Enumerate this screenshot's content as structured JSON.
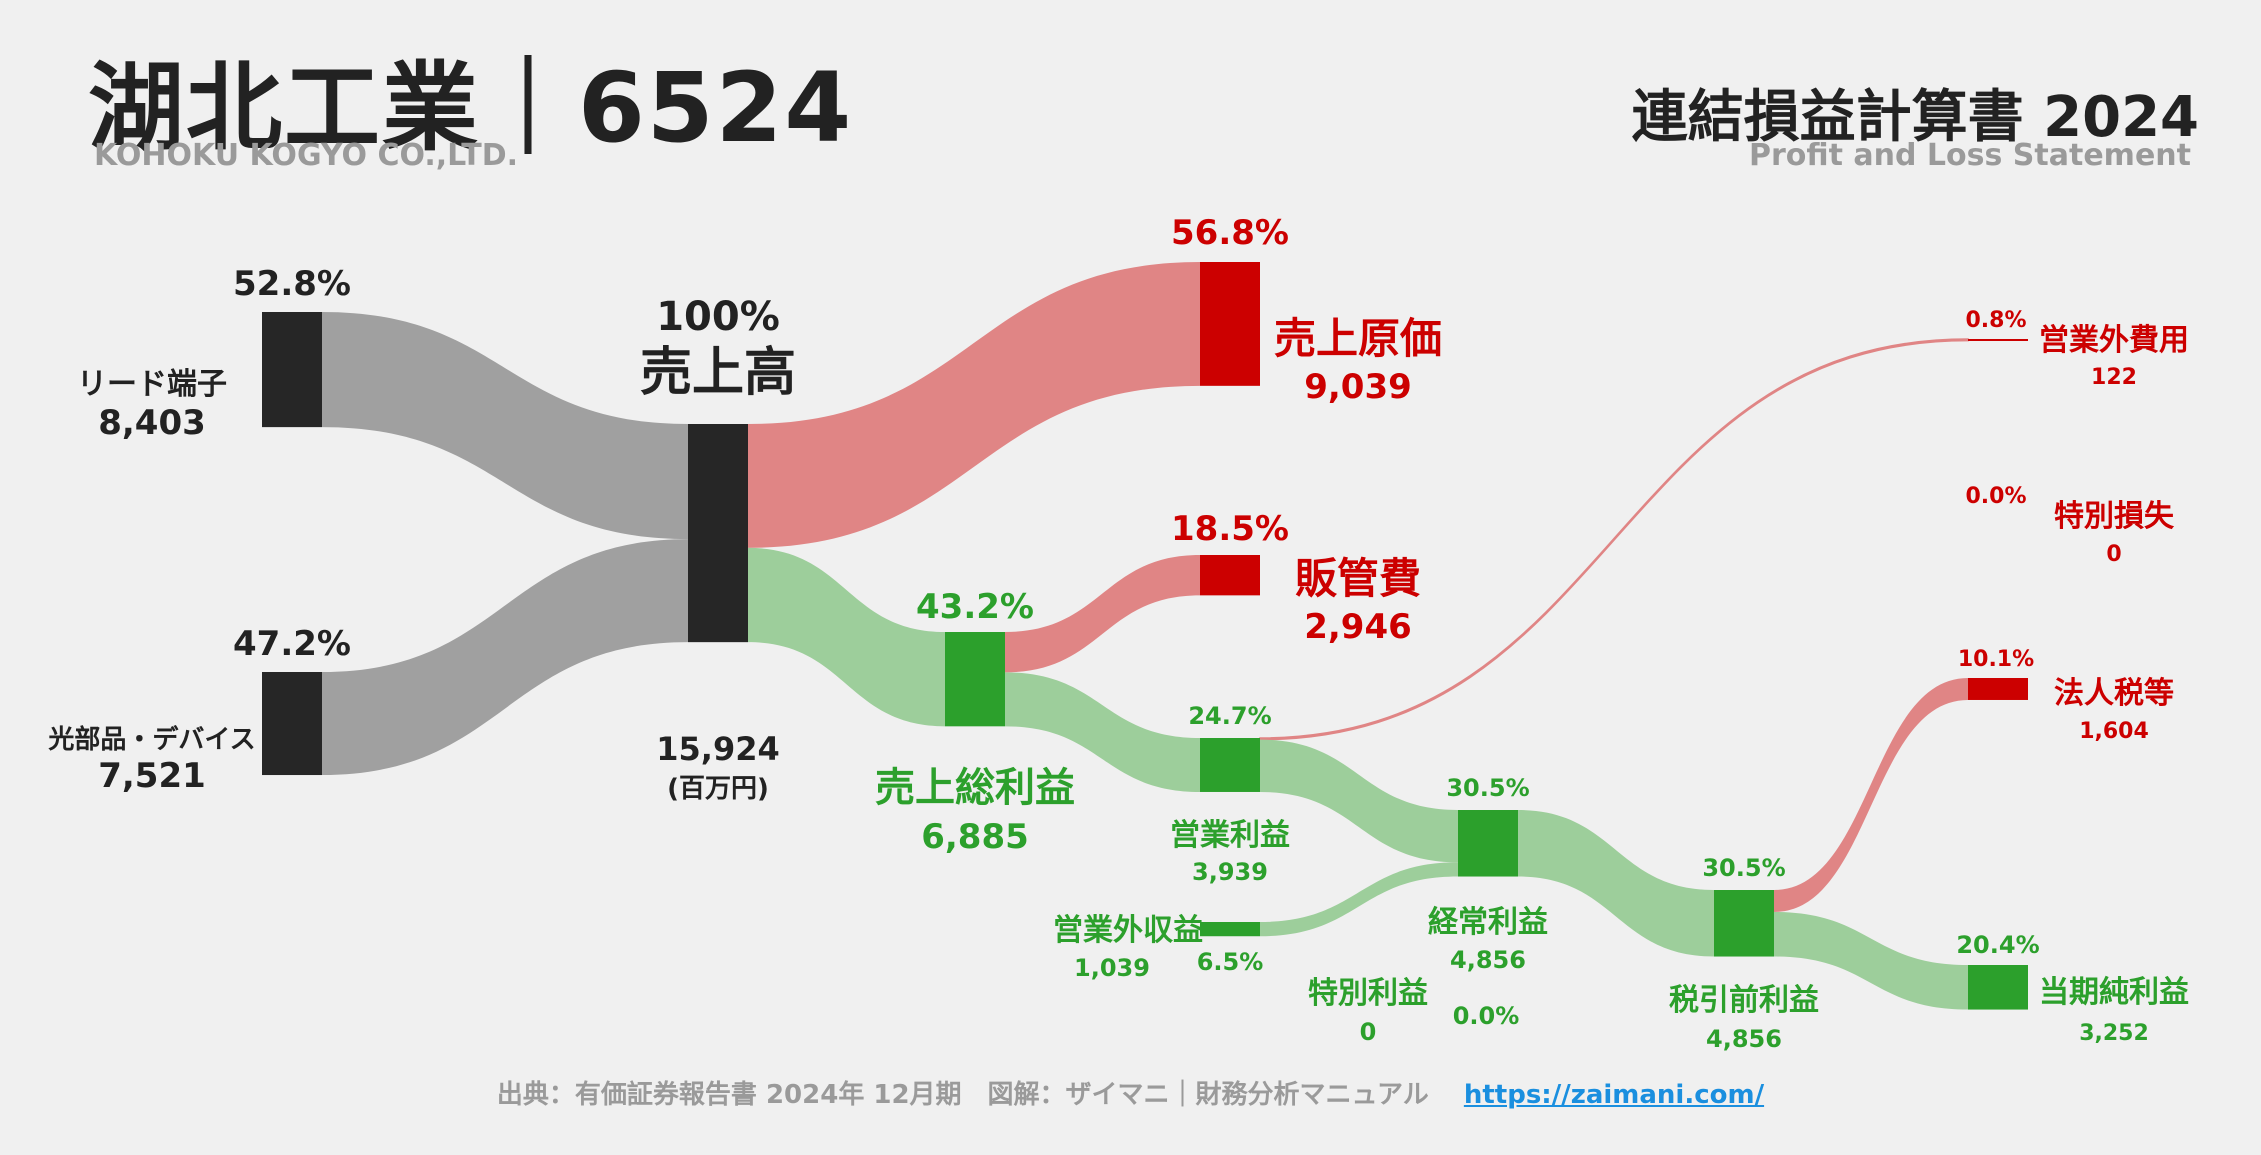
{
  "header": {
    "company": "湖北工業｜6524",
    "company_en": "KOHOKU KOGYO CO.,LTD.",
    "statement": "連結損益計算書 2024",
    "statement_en": "Profit and Loss Statement"
  },
  "footer": {
    "source": "出典：有価証券報告書 2024年 12月期　図解：ザイマニ｜財務分析マニュアル",
    "link": "https://zaimani.com/"
  },
  "colors": {
    "background": "#f0f0f0",
    "revenue_node": "#262626",
    "revenue_flow": "#a0a0a0",
    "cost_node": "#cc0000",
    "cost_flow": "#e08585",
    "profit_node": "#2ca02c",
    "profit_flow": "#9dce9b",
    "link": "#1a8fdf"
  },
  "chart_data": {
    "type": "sankey",
    "unit": "(百万円)",
    "nodes": [
      {
        "id": "lead",
        "label": "リード端子",
        "value_label": "8,403",
        "value": 8403,
        "pct": "52.8%",
        "kind": "segment"
      },
      {
        "id": "optical",
        "label": "光部品・デバイス",
        "value_label": "7,521",
        "value": 7521,
        "pct": "47.2%",
        "kind": "segment"
      },
      {
        "id": "sales",
        "label": "売上高",
        "value_label": "15,924",
        "value": 15924,
        "pct": "100%",
        "kind": "revenue"
      },
      {
        "id": "cogs",
        "label": "売上原価",
        "value_label": "9,039",
        "value": 9039,
        "pct": "56.8%",
        "kind": "cost"
      },
      {
        "id": "gross",
        "label": "売上総利益",
        "value_label": "6,885",
        "value": 6885,
        "pct": "43.2%",
        "kind": "profit"
      },
      {
        "id": "sga",
        "label": "販管費",
        "value_label": "2,946",
        "value": 2946,
        "pct": "18.5%",
        "kind": "cost"
      },
      {
        "id": "op",
        "label": "営業利益",
        "value_label": "3,939",
        "value": 3939,
        "pct": "24.7%",
        "kind": "profit"
      },
      {
        "id": "nonop_inc",
        "label": "営業外収益",
        "value_label": "1,039",
        "value": 1039,
        "pct": "6.5%",
        "kind": "profit"
      },
      {
        "id": "nonop_exp",
        "label": "営業外費用",
        "value_label": "122",
        "value": 122,
        "pct": "0.8%",
        "kind": "cost"
      },
      {
        "id": "ordinary",
        "label": "経常利益",
        "value_label": "4,856",
        "value": 4856,
        "pct": "30.5%",
        "kind": "profit"
      },
      {
        "id": "extra_inc",
        "label": "特別利益",
        "value_label": "0",
        "value": 0,
        "pct": "0.0%",
        "kind": "profit"
      },
      {
        "id": "extra_loss",
        "label": "特別損失",
        "value_label": "0",
        "value": 0,
        "pct": "0.0%",
        "kind": "cost"
      },
      {
        "id": "pretax",
        "label": "税引前利益",
        "value_label": "4,856",
        "value": 4856,
        "pct": "30.5%",
        "kind": "profit"
      },
      {
        "id": "tax",
        "label": "法人税等",
        "value_label": "1,604",
        "value": 1604,
        "pct": "10.1%",
        "kind": "cost"
      },
      {
        "id": "net",
        "label": "当期純利益",
        "value_label": "3,252",
        "value": 3252,
        "pct": "20.4%",
        "kind": "profit"
      }
    ],
    "flows": [
      {
        "from": "lead",
        "to": "sales",
        "value": 8403
      },
      {
        "from": "optical",
        "to": "sales",
        "value": 7521
      },
      {
        "from": "sales",
        "to": "cogs",
        "value": 9039
      },
      {
        "from": "sales",
        "to": "gross",
        "value": 6885
      },
      {
        "from": "gross",
        "to": "sga",
        "value": 2946
      },
      {
        "from": "gross",
        "to": "op",
        "value": 3939
      },
      {
        "from": "op",
        "to": "nonop_exp",
        "value": 122
      },
      {
        "from": "op",
        "to": "ordinary",
        "value": 3817
      },
      {
        "from": "nonop_inc",
        "to": "ordinary",
        "value": 1039
      },
      {
        "from": "ordinary",
        "to": "pretax",
        "value": 4856
      },
      {
        "from": "pretax",
        "to": "tax",
        "value": 1604
      },
      {
        "from": "pretax",
        "to": "net",
        "value": 3252
      }
    ]
  }
}
